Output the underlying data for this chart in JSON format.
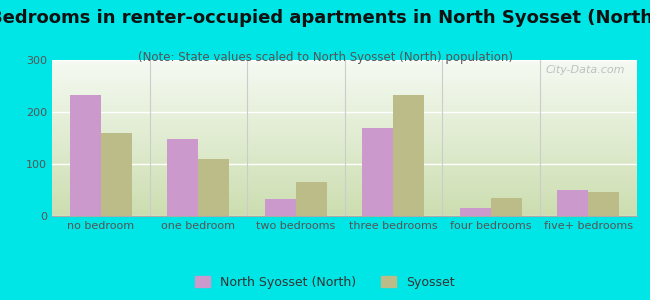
{
  "title": "Bedrooms in renter-occupied apartments in North Syosset (North)",
  "subtitle": "(Note: State values scaled to North Syosset (North) population)",
  "categories": [
    "no bedroom",
    "one bedroom",
    "two bedrooms",
    "three bedrooms",
    "four bedrooms",
    "five+ bedrooms"
  ],
  "north_syosset": [
    233,
    148,
    33,
    170,
    15,
    50
  ],
  "syosset": [
    160,
    110,
    65,
    232,
    35,
    47
  ],
  "bar_color_ns": "#cc99cc",
  "bar_color_sy": "#bbbc88",
  "bg_outer": "#00e5e5",
  "bg_chart_bottom": "#ccddb0",
  "bg_chart_top": "#f5f8f0",
  "ylim": [
    0,
    300
  ],
  "yticks": [
    0,
    100,
    200,
    300
  ],
  "legend_ns": "North Syosset (North)",
  "legend_sy": "Syosset",
  "watermark": "City-Data.com",
  "title_fontsize": 13,
  "subtitle_fontsize": 8.5,
  "tick_fontsize": 8,
  "legend_fontsize": 9
}
